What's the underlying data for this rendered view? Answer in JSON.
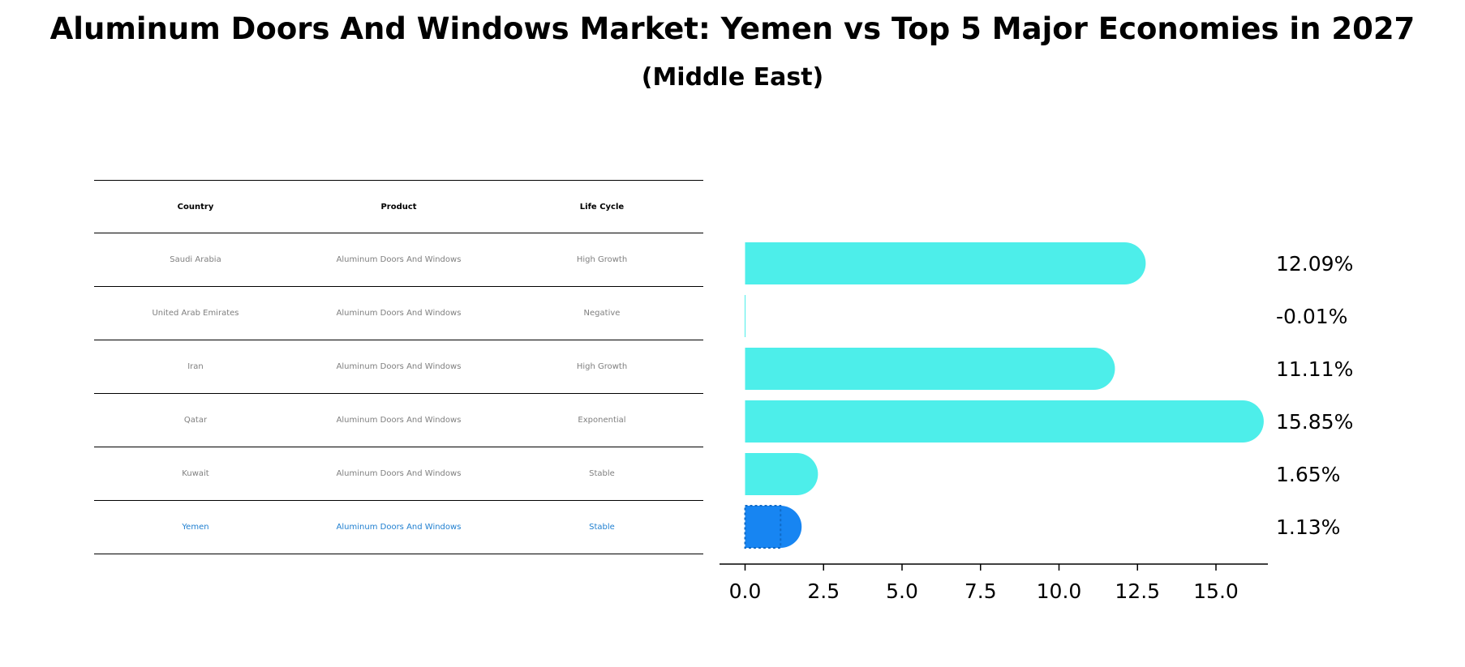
{
  "title": "Aluminum Doors And Windows Market: Yemen vs Top 5 Major Economies in 2027",
  "subtitle": "(Middle East)",
  "table": {
    "headers": [
      "Country",
      "Product",
      "Life Cycle"
    ],
    "rows": [
      [
        "Saudi Arabia",
        "Aluminum Doors And Windows",
        "High Growth"
      ],
      [
        "United Arab Emirates",
        "Aluminum Doors And Windows",
        "Negative"
      ],
      [
        "Iran",
        "Aluminum Doors And Windows",
        "High Growth"
      ],
      [
        "Qatar",
        "Aluminum Doors And Windows",
        "Exponential"
      ],
      [
        "Kuwait",
        "Aluminum Doors And Windows",
        "Stable"
      ],
      [
        "Yemen",
        "Aluminum Doors And Windows",
        "Stable"
      ]
    ]
  },
  "chart_data": {
    "type": "bar",
    "orientation": "horizontal",
    "categories": [
      "Saudi Arabia",
      "United Arab Emirates",
      "Iran",
      "Qatar",
      "Kuwait",
      "Yemen"
    ],
    "values": [
      12.09,
      -0.01,
      11.11,
      15.85,
      1.65,
      1.13
    ],
    "value_labels": [
      "12.09%",
      "-0.01%",
      "11.11%",
      "15.85%",
      "1.65%",
      "1.13%"
    ],
    "xlim": [
      -0.8,
      16.6
    ],
    "xticks": [
      "0.0",
      "2.5",
      "5.0",
      "7.5",
      "10.0",
      "12.5",
      "15.0"
    ],
    "xtick_values": [
      0,
      2.5,
      5,
      7.5,
      10,
      12.5,
      15
    ],
    "highlight_index": 5,
    "colors": {
      "default": "#4deeea",
      "highlight": "#1785f2"
    }
  }
}
